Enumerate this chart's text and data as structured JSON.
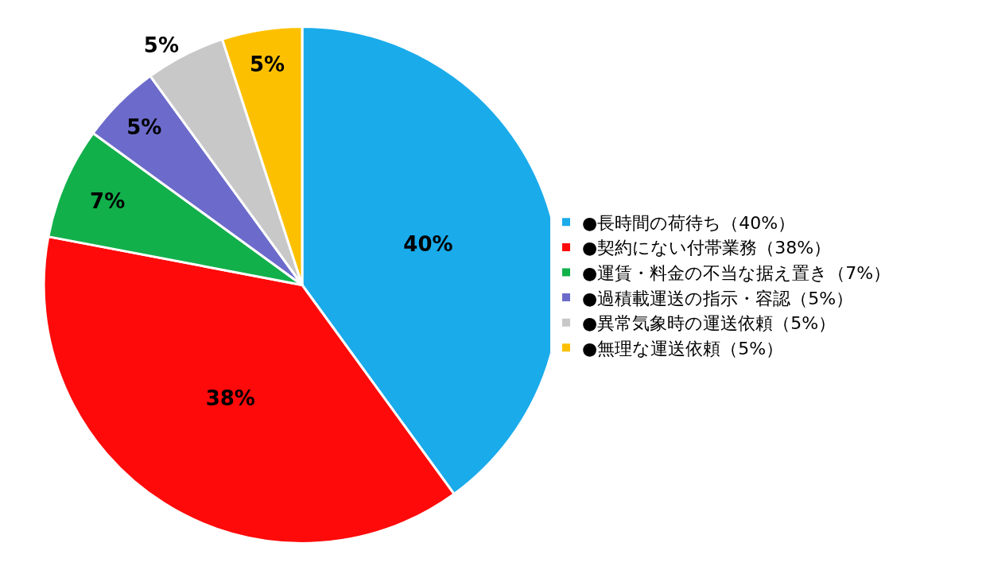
{
  "chart_data": {
    "type": "pie",
    "categories": [
      "●長時間の荷待ち（40%）",
      "●契約にない付帯業務（38%）",
      "●運賃・料金の不当な据え置き（7%）",
      "●過積載運送の指示・容認（5%）",
      "●異常気象時の運送依頼（5%）",
      "●無理な運送依頼（5%）"
    ],
    "values": [
      40,
      38,
      7,
      5,
      5,
      5
    ],
    "value_labels": [
      "40%",
      "38%",
      "7%",
      "5%",
      "5%",
      "5%"
    ],
    "colors": [
      "#1aabeb",
      "#fe0a0a",
      "#12b04b",
      "#6c6bcb",
      "#c8c8c8",
      "#fdc000"
    ],
    "legend": "right"
  }
}
